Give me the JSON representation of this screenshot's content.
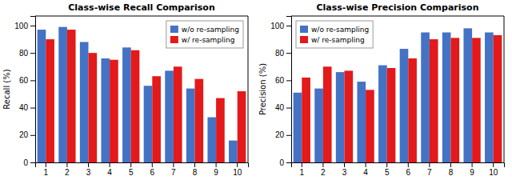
{
  "chart_data": [
    {
      "type": "bar",
      "title": "Class-wise Recall Comparison",
      "y_label": "Recall (%)",
      "categories": [
        "1",
        "2",
        "3",
        "4",
        "5",
        "6",
        "7",
        "8",
        "9",
        "10"
      ],
      "series": [
        {
          "name": "w/o re-sampling",
          "color": "#4472c4",
          "values": [
            97,
            99,
            88,
            76,
            84,
            56,
            67,
            54,
            33,
            16
          ]
        },
        {
          "name": "w/ re-sampling",
          "color": "#e3191a",
          "values": [
            90,
            97,
            80,
            75,
            82,
            63,
            70,
            61,
            47,
            52
          ]
        }
      ],
      "ylim": [
        0,
        107
      ],
      "yticks": [
        0,
        20,
        40,
        60,
        80,
        100
      ],
      "legend": "upper right",
      "grid": false
    },
    {
      "type": "bar",
      "title": "Class-wise Precision Comparison",
      "y_label": "Precision (%)",
      "categories": [
        "1",
        "2",
        "3",
        "4",
        "5",
        "6",
        "7",
        "8",
        "9",
        "10"
      ],
      "series": [
        {
          "name": "w/o re-sampling",
          "color": "#4472c4",
          "values": [
            51,
            54,
            66,
            59,
            71,
            83,
            95,
            95,
            98,
            95
          ]
        },
        {
          "name": "w/ re-sampling",
          "color": "#e3191a",
          "values": [
            62,
            70,
            67,
            53,
            69,
            76,
            90,
            91,
            91,
            93
          ]
        }
      ],
      "ylim": [
        0,
        107
      ],
      "yticks": [
        0,
        20,
        40,
        60,
        80,
        100
      ],
      "legend": "upper left",
      "grid": false
    }
  ]
}
